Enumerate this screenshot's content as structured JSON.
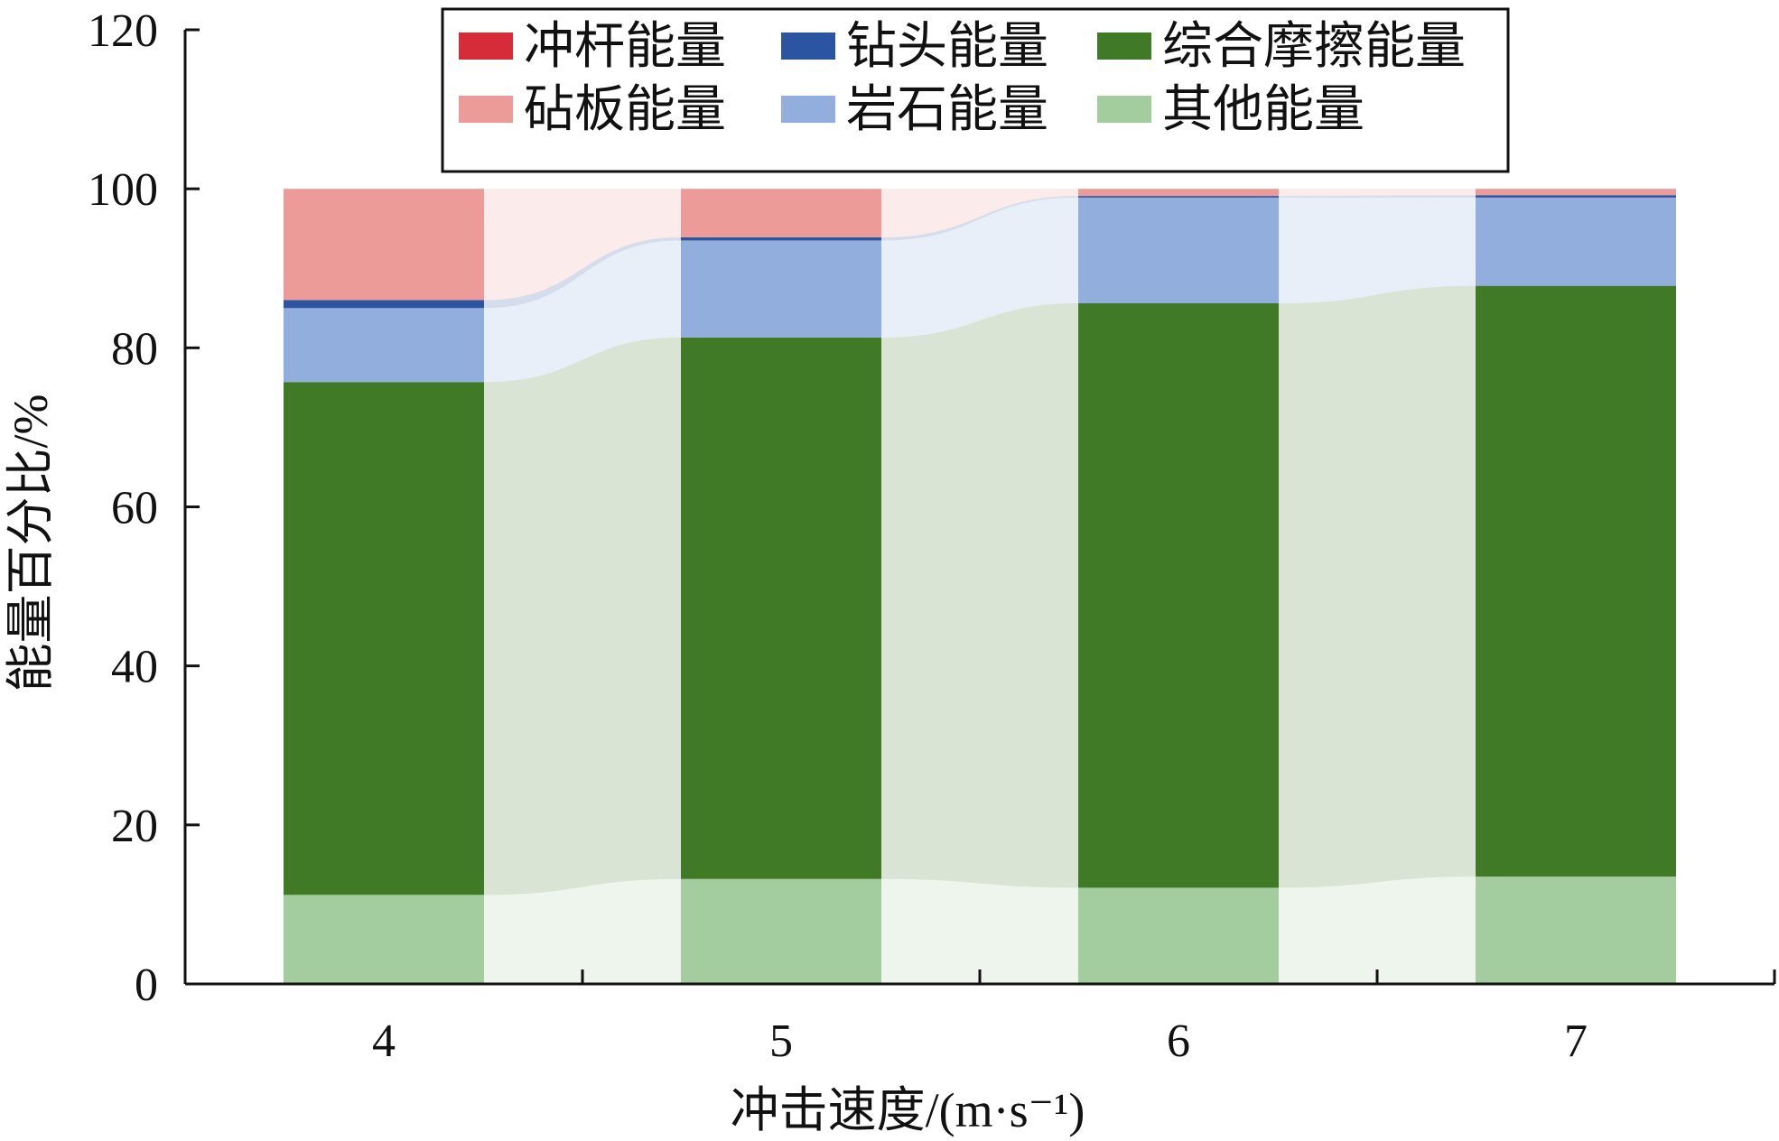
{
  "chart_data": {
    "type": "bar",
    "stacked": true,
    "percent_stacked": true,
    "categories": [
      "4",
      "5",
      "6",
      "7"
    ],
    "xlabel": "冲击速度/(m·s⁻¹)",
    "ylabel": "能量百分比/%",
    "ylim": [
      0,
      120
    ],
    "yticks": [
      0,
      20,
      40,
      60,
      80,
      100,
      120
    ],
    "grid": false,
    "legend_position": "top-center",
    "series": [
      {
        "name": "其他能量",
        "color": "#a3cc9f",
        "values": [
          11.2,
          13.2,
          12.1,
          13.5
        ]
      },
      {
        "name": "综合摩擦能量",
        "color": "#417a26",
        "values": [
          64.5,
          68.1,
          73.5,
          74.3
        ]
      },
      {
        "name": "岩石能量",
        "color": "#92aedd",
        "values": [
          9.3,
          12.2,
          13.3,
          11.1
        ]
      },
      {
        "name": "钻头能量",
        "color": "#2b55a0",
        "values": [
          1.0,
          0.4,
          0.2,
          0.3
        ]
      },
      {
        "name": "砧板能量",
        "color": "#ed9b98",
        "values": [
          14.0,
          6.1,
          0.9,
          0.8
        ]
      },
      {
        "name": "冲杆能量",
        "color": "#d62c39",
        "values": [
          0.0,
          0.0,
          0.0,
          0.0
        ]
      }
    ],
    "legend_order": [
      "冲杆能量",
      "钻头能量",
      "综合摩擦能量",
      "砧板能量",
      "岩石能量",
      "其他能量"
    ]
  }
}
